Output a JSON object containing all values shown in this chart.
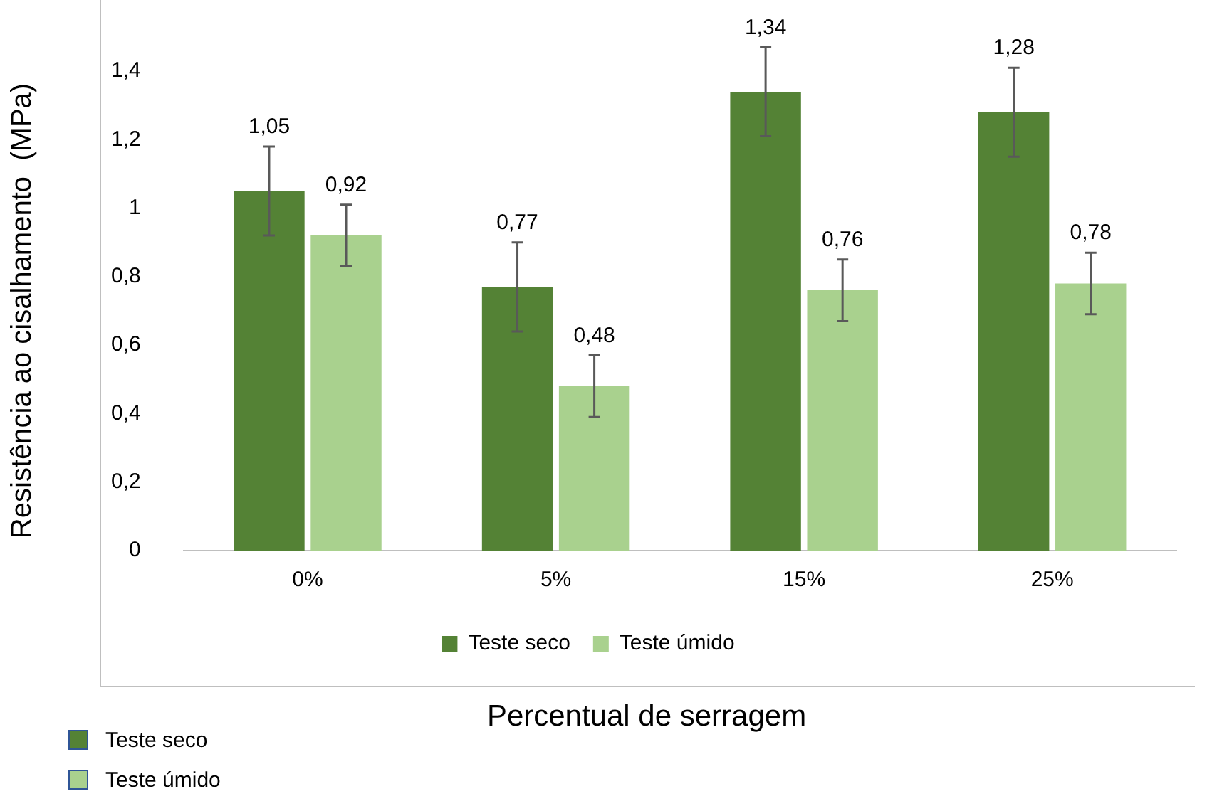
{
  "chart_data": {
    "type": "bar",
    "ylabel": "Resistência ao cisalhamento  (MPa)",
    "xlabel": "Percentual de serragem",
    "categories": [
      "0%",
      "5%",
      "15%",
      "25%"
    ],
    "series": [
      {
        "name": "Teste seco",
        "color": "#548235",
        "values": [
          1.05,
          0.77,
          1.34,
          1.28
        ],
        "errors": [
          0.13,
          0.13,
          0.13,
          0.13
        ],
        "value_labels": [
          "1,05",
          "0,77",
          "1,34",
          "1,28"
        ]
      },
      {
        "name": "Teste úmido",
        "color": "#a9d18e",
        "values": [
          0.92,
          0.48,
          0.76,
          0.78
        ],
        "errors": [
          0.09,
          0.09,
          0.09,
          0.09
        ],
        "value_labels": [
          "0,92",
          "0,48",
          "0,76",
          "0,78"
        ]
      }
    ],
    "ylim": [
      0,
      1.4
    ],
    "yticks": [
      {
        "value": 0,
        "label": "0"
      },
      {
        "value": 0.2,
        "label": "0,2"
      },
      {
        "value": 0.4,
        "label": "0,4"
      },
      {
        "value": 0.6,
        "label": "0,6"
      },
      {
        "value": 0.8,
        "label": "0,8"
      },
      {
        "value": 1,
        "label": "1"
      },
      {
        "value": 1.2,
        "label": "1,2"
      },
      {
        "value": 1.4,
        "label": "1,4"
      }
    ],
    "grid": false,
    "legend": "bottom"
  }
}
